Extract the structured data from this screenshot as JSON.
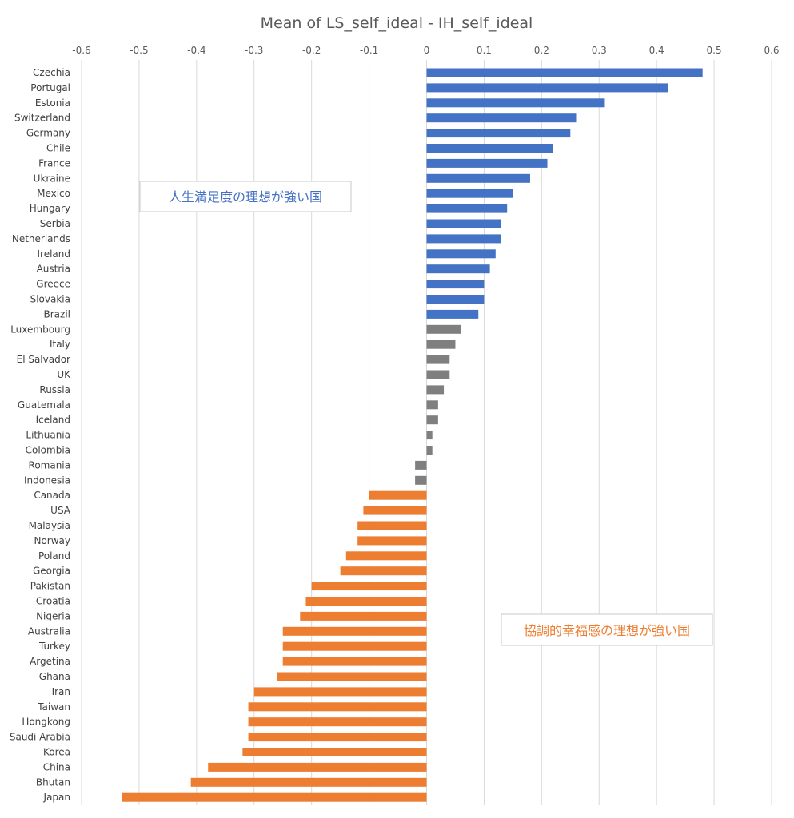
{
  "chart_data": {
    "type": "bar",
    "orientation": "horizontal",
    "title": "Mean of LS_self_ideal - IH_self_ideal",
    "xlim": [
      -0.6,
      0.6
    ],
    "x_ticks": [
      "-0.6",
      "-0.5",
      "-0.4",
      "-0.3",
      "-0.2",
      "-0.1",
      "0",
      "0.1",
      "0.2",
      "0.3",
      "0.4",
      "0.5",
      "0.6"
    ],
    "grid": "vertical",
    "categories": [
      "Czechia",
      "Portugal",
      "Estonia",
      "Switzerland",
      "Germany",
      "Chile",
      "France",
      "Ukraine",
      "Mexico",
      "Hungary",
      "Serbia",
      "Netherlands",
      "Ireland",
      "Austria",
      "Greece",
      "Slovakia",
      "Brazil",
      "Luxembourg",
      "Italy",
      "El Salvador",
      "UK",
      "Russia",
      "Guatemala",
      "Iceland",
      "Lithuania",
      "Colombia",
      "Romania",
      "Indonesia",
      "Canada",
      "USA",
      "Malaysia",
      "Norway",
      "Poland",
      "Georgia",
      "Pakistan",
      "Croatia",
      "Nigeria",
      "Australia",
      "Turkey",
      "Argetina",
      "Ghana",
      "Iran",
      "Taiwan",
      "Hongkong",
      "Saudi Arabia",
      "Korea",
      "China",
      "Bhutan",
      "Japan"
    ],
    "values": [
      0.48,
      0.42,
      0.31,
      0.26,
      0.25,
      0.22,
      0.21,
      0.18,
      0.15,
      0.14,
      0.13,
      0.13,
      0.12,
      0.11,
      0.1,
      0.1,
      0.09,
      0.06,
      0.05,
      0.04,
      0.04,
      0.03,
      0.02,
      0.02,
      0.01,
      0.01,
      -0.02,
      -0.02,
      -0.1,
      -0.11,
      -0.12,
      -0.12,
      -0.14,
      -0.15,
      -0.2,
      -0.21,
      -0.22,
      -0.25,
      -0.25,
      -0.25,
      -0.26,
      -0.3,
      -0.31,
      -0.31,
      -0.31,
      -0.32,
      -0.38,
      -0.41,
      -0.53
    ],
    "groups": [
      "blue",
      "blue",
      "blue",
      "blue",
      "blue",
      "blue",
      "blue",
      "blue",
      "blue",
      "blue",
      "blue",
      "blue",
      "blue",
      "blue",
      "blue",
      "blue",
      "blue",
      "gray",
      "gray",
      "gray",
      "gray",
      "gray",
      "gray",
      "gray",
      "gray",
      "gray",
      "gray",
      "gray",
      "orange",
      "orange",
      "orange",
      "orange",
      "orange",
      "orange",
      "orange",
      "orange",
      "orange",
      "orange",
      "orange",
      "orange",
      "orange",
      "orange",
      "orange",
      "orange",
      "orange",
      "orange",
      "orange",
      "orange",
      "orange"
    ],
    "colors": {
      "blue": "#4472C4",
      "gray": "#7F7F7F",
      "orange": "#ED7D31"
    },
    "annotations": [
      {
        "text": "人生満足度の理想が強い国",
        "color": "#4472C4"
      },
      {
        "text": "協調的幸福感の理想が強い国",
        "color": "#ED7D31"
      }
    ]
  }
}
